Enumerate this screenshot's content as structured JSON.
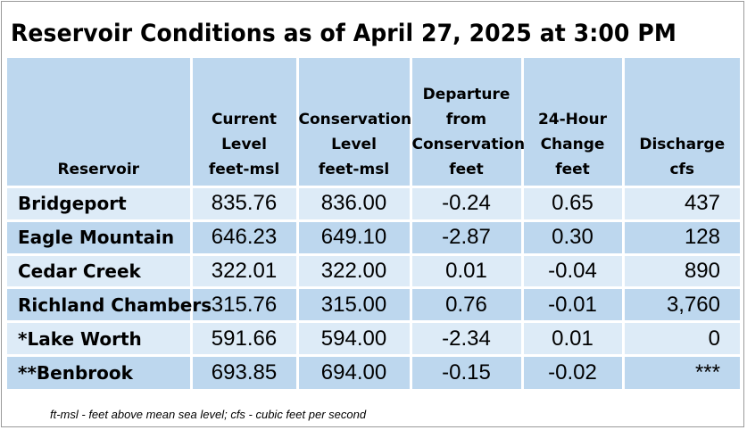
{
  "title": "Reservoir Conditions as of April 27, 2025 at 3:00 PM",
  "columns": [
    {
      "lines": [
        "Reservoir"
      ]
    },
    {
      "lines": [
        "Current",
        "Level",
        "feet-msl"
      ]
    },
    {
      "lines": [
        "Conservation",
        "Level",
        "feet-msl"
      ]
    },
    {
      "lines": [
        "Departure",
        "from",
        "Conservation",
        "feet"
      ]
    },
    {
      "lines": [
        "24-Hour",
        "Change",
        "feet"
      ]
    },
    {
      "lines": [
        "Discharge",
        "cfs"
      ]
    }
  ],
  "rows": [
    {
      "name": "Bridgeport",
      "current": "835.76",
      "conservation": "836.00",
      "departure": "-0.24",
      "change": "0.65",
      "discharge": "437"
    },
    {
      "name": "Eagle Mountain",
      "current": "646.23",
      "conservation": "649.10",
      "departure": "-2.87",
      "change": "0.30",
      "discharge": "128"
    },
    {
      "name": "Cedar Creek",
      "current": "322.01",
      "conservation": "322.00",
      "departure": "0.01",
      "change": "-0.04",
      "discharge": "890"
    },
    {
      "name": "Richland Chambers",
      "current": "315.76",
      "conservation": "315.00",
      "departure": "0.76",
      "change": "-0.01",
      "discharge": "3,760"
    },
    {
      "name": "*Lake Worth",
      "current": "591.66",
      "conservation": "594.00",
      "departure": "-2.34",
      "change": "0.01",
      "discharge": "0"
    },
    {
      "name": "**Benbrook",
      "current": "693.85",
      "conservation": "694.00",
      "departure": "-0.15",
      "change": "-0.02",
      "discharge": "***"
    }
  ],
  "footnote": "ft-msl - feet above mean sea level; cfs - cubic feet per second",
  "colors": {
    "header": "#bdd7ee",
    "row_light": "#ddebf7",
    "row_dark": "#bdd7ee"
  }
}
